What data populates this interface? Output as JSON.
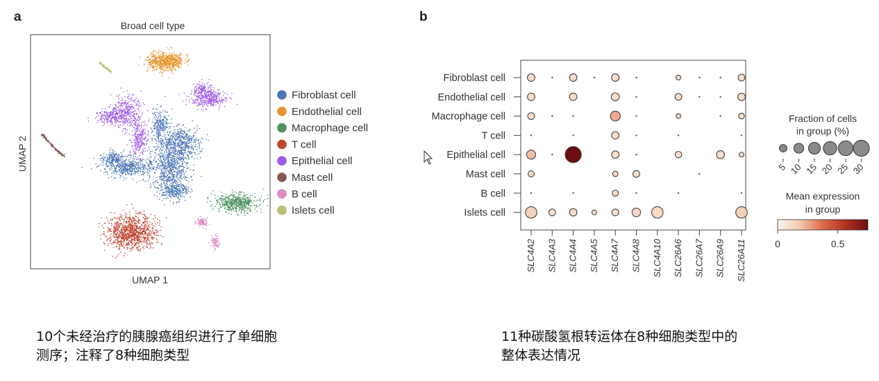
{
  "panel_a": {
    "letter": "a",
    "caption": "10个未经治疗的胰腺癌组织进行了单细胞\n测序；注释了8种细胞类型"
  },
  "panel_b": {
    "letter": "b",
    "caption": "11种碳酸氢根转运体在8种细胞类型中的\n整体表达情况"
  },
  "chart_data": [
    {
      "type": "scatter",
      "title": "Broad cell type",
      "xlabel": "UMAP 1",
      "ylabel": "UMAP 2",
      "legend_position": "right",
      "grid": false,
      "series": [
        {
          "name": "Fibroblast cell",
          "color": "#4b75b4"
        },
        {
          "name": "Endothelial cell",
          "color": "#e6952e"
        },
        {
          "name": "Macrophage cell",
          "color": "#4f9260"
        },
        {
          "name": "T cell",
          "color": "#c0452f"
        },
        {
          "name": "Epithelial cell",
          "color": "#a05be8"
        },
        {
          "name": "Mast cell",
          "color": "#86584c"
        },
        {
          "name": "B cell",
          "color": "#dc8ac6"
        },
        {
          "name": "Islets cell",
          "color": "#bcbf72"
        }
      ]
    },
    {
      "type": "heatmap",
      "subtype": "dotplot",
      "rows": [
        "Fibroblast cell",
        "Endothelial cell",
        "Macrophage cell",
        "T cell",
        "Epithelial cell",
        "Mast cell",
        "B cell",
        "Islets cell"
      ],
      "columns": [
        "SLC4A2",
        "SLC4A3",
        "SLC4A4",
        "SLC4A5",
        "SLC4A7",
        "SLC4A8",
        "SLC4A10",
        "SLC26A6",
        "SLC26A7",
        "SLC26A9",
        "SLC26A11"
      ],
      "fraction": [
        [
          5,
          1,
          5,
          0.5,
          5,
          1,
          0,
          1.5,
          0.5,
          0.5,
          4
        ],
        [
          5,
          0,
          5,
          0,
          6,
          0.5,
          0,
          4,
          0.5,
          0.5,
          5
        ],
        [
          4,
          0.5,
          0.5,
          0,
          10,
          1,
          0,
          1.5,
          0,
          0.5,
          2.5
        ],
        [
          1,
          0,
          1,
          0,
          5,
          0.5,
          0,
          0.5,
          0,
          0,
          1
        ],
        [
          8,
          1,
          30,
          0,
          5,
          0.5,
          0,
          3.5,
          0,
          6,
          1.5
        ],
        [
          3,
          0,
          0,
          0,
          2,
          4,
          0,
          0,
          0.5,
          0,
          0
        ],
        [
          1,
          0,
          0.5,
          0,
          3,
          0.5,
          0,
          0.5,
          0,
          0,
          0.5
        ],
        [
          14,
          4,
          5,
          1.5,
          4,
          7,
          14,
          0,
          0,
          0,
          14
        ]
      ],
      "mean_expression": [
        [
          0.1,
          0.1,
          0.1,
          0.1,
          0.1,
          0.1,
          0.0,
          0.1,
          0.1,
          0.1,
          0.1
        ],
        [
          0.1,
          0.0,
          0.1,
          0.0,
          0.1,
          0.1,
          0.0,
          0.1,
          0.1,
          0.1,
          0.1
        ],
        [
          0.1,
          0.1,
          0.1,
          0.0,
          0.25,
          0.1,
          0.0,
          0.1,
          0.0,
          0.1,
          0.1
        ],
        [
          0.1,
          0.0,
          0.1,
          0.0,
          0.1,
          0.1,
          0.0,
          0.1,
          0.0,
          0.0,
          0.1
        ],
        [
          0.2,
          0.1,
          0.75,
          0.0,
          0.1,
          0.1,
          0.0,
          0.1,
          0.0,
          0.1,
          0.1
        ],
        [
          0.1,
          0.0,
          0.0,
          0.0,
          0.1,
          0.1,
          0.0,
          0.0,
          0.1,
          0.0,
          0.0
        ],
        [
          0.1,
          0.0,
          0.1,
          0.0,
          0.1,
          0.1,
          0.0,
          0.1,
          0.0,
          0.0,
          0.1
        ],
        [
          0.15,
          0.1,
          0.1,
          0.1,
          0.1,
          0.12,
          0.12,
          0.0,
          0.0,
          0.0,
          0.15
        ]
      ],
      "size_legend": {
        "title_line1": "Fraction of cells",
        "title_line2": "in group (%)",
        "values": [
          5,
          10,
          15,
          20,
          25,
          30
        ]
      },
      "color_legend": {
        "title_line1": "Mean expression",
        "title_line2": "in group",
        "range": [
          0,
          0.75
        ],
        "ticks": [
          "0",
          "0.5"
        ],
        "colors": [
          "#fdf6f0",
          "#f3c7ad",
          "#dc6a4a",
          "#b3331f",
          "#6b0d12"
        ]
      }
    }
  ]
}
